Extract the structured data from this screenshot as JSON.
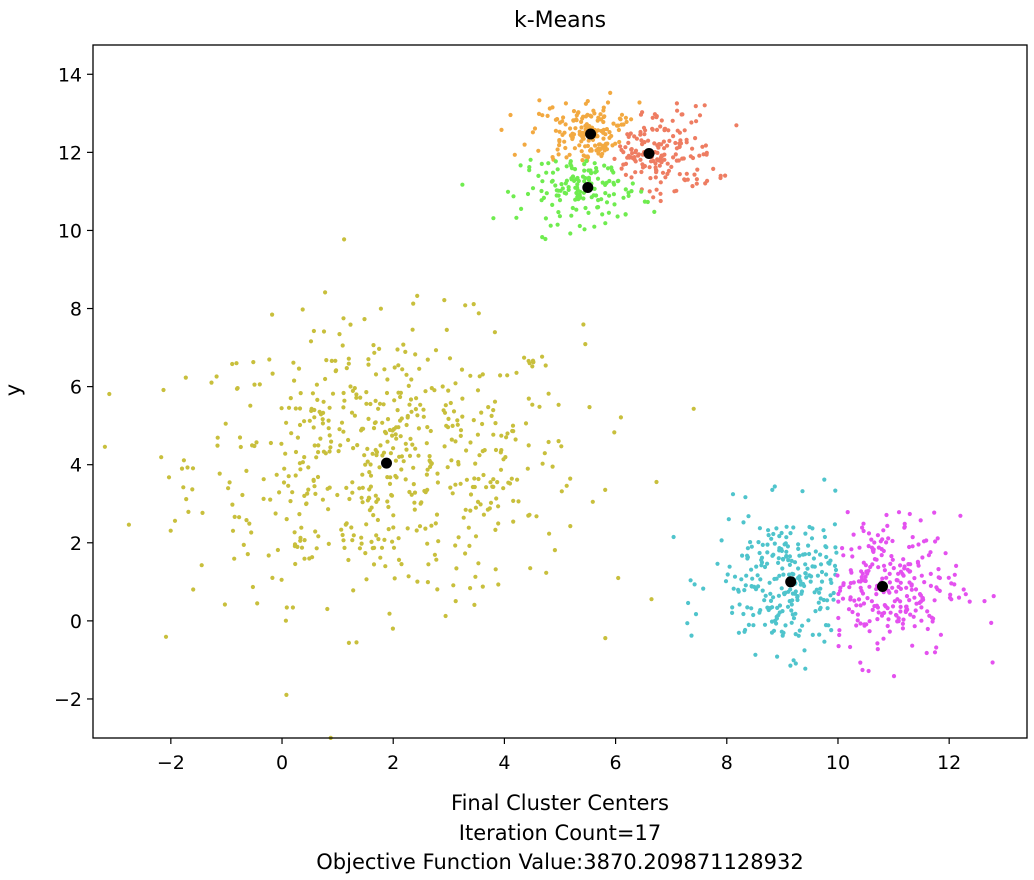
{
  "chart_data": {
    "type": "scatter",
    "title": "k-Means",
    "xlabel_lines": [
      "Final Cluster Centers",
      "Iteration Count=17",
      "Objective Function Value:3870.209871128932"
    ],
    "ylabel": "y",
    "xlim": [
      -3.4,
      13.4
    ],
    "ylim": [
      -3.0,
      14.75
    ],
    "xticks": [
      -2,
      0,
      2,
      4,
      6,
      8,
      10,
      12
    ],
    "yticks": [
      -2,
      0,
      2,
      4,
      6,
      8,
      10,
      12,
      14
    ],
    "xtick_labels": [
      "−2",
      "0",
      "2",
      "4",
      "6",
      "8",
      "10",
      "12"
    ],
    "ytick_labels": [
      "−2",
      "0",
      "2",
      "4",
      "6",
      "8",
      "10",
      "12",
      "14"
    ],
    "grid": false,
    "legend": "none",
    "series": [
      {
        "color": "#c8bf3c",
        "center": [
          1.88,
          4.04
        ],
        "count": 600,
        "spread": [
          1.75,
          1.75
        ],
        "region": "left-blob"
      },
      {
        "color": "#f2a941",
        "center": [
          5.55,
          12.47
        ],
        "count": 160,
        "spread": [
          0.55,
          0.45
        ],
        "region": "upper-top"
      },
      {
        "color": "#ee7d62",
        "center": [
          6.6,
          11.97
        ],
        "count": 170,
        "spread": [
          0.6,
          0.6
        ],
        "region": "upper-right"
      },
      {
        "color": "#6fec4f",
        "center": [
          5.5,
          11.1
        ],
        "count": 150,
        "spread": [
          0.6,
          0.45
        ],
        "region": "upper-bottom"
      },
      {
        "color": "#4fc4cc",
        "center": [
          9.15,
          1.0
        ],
        "count": 260,
        "spread": [
          0.7,
          0.9
        ],
        "region": "lower-left"
      },
      {
        "color": "#e451ef",
        "center": [
          10.8,
          0.88
        ],
        "count": 260,
        "spread": [
          0.7,
          0.9
        ],
        "region": "lower-right"
      }
    ],
    "centers": [
      {
        "x": 1.88,
        "y": 4.04
      },
      {
        "x": 5.55,
        "y": 12.47
      },
      {
        "x": 6.6,
        "y": 11.97
      },
      {
        "x": 5.5,
        "y": 11.1
      },
      {
        "x": 9.15,
        "y": 1.0
      },
      {
        "x": 10.8,
        "y": 0.88
      }
    ],
    "center_color": "#000000"
  }
}
